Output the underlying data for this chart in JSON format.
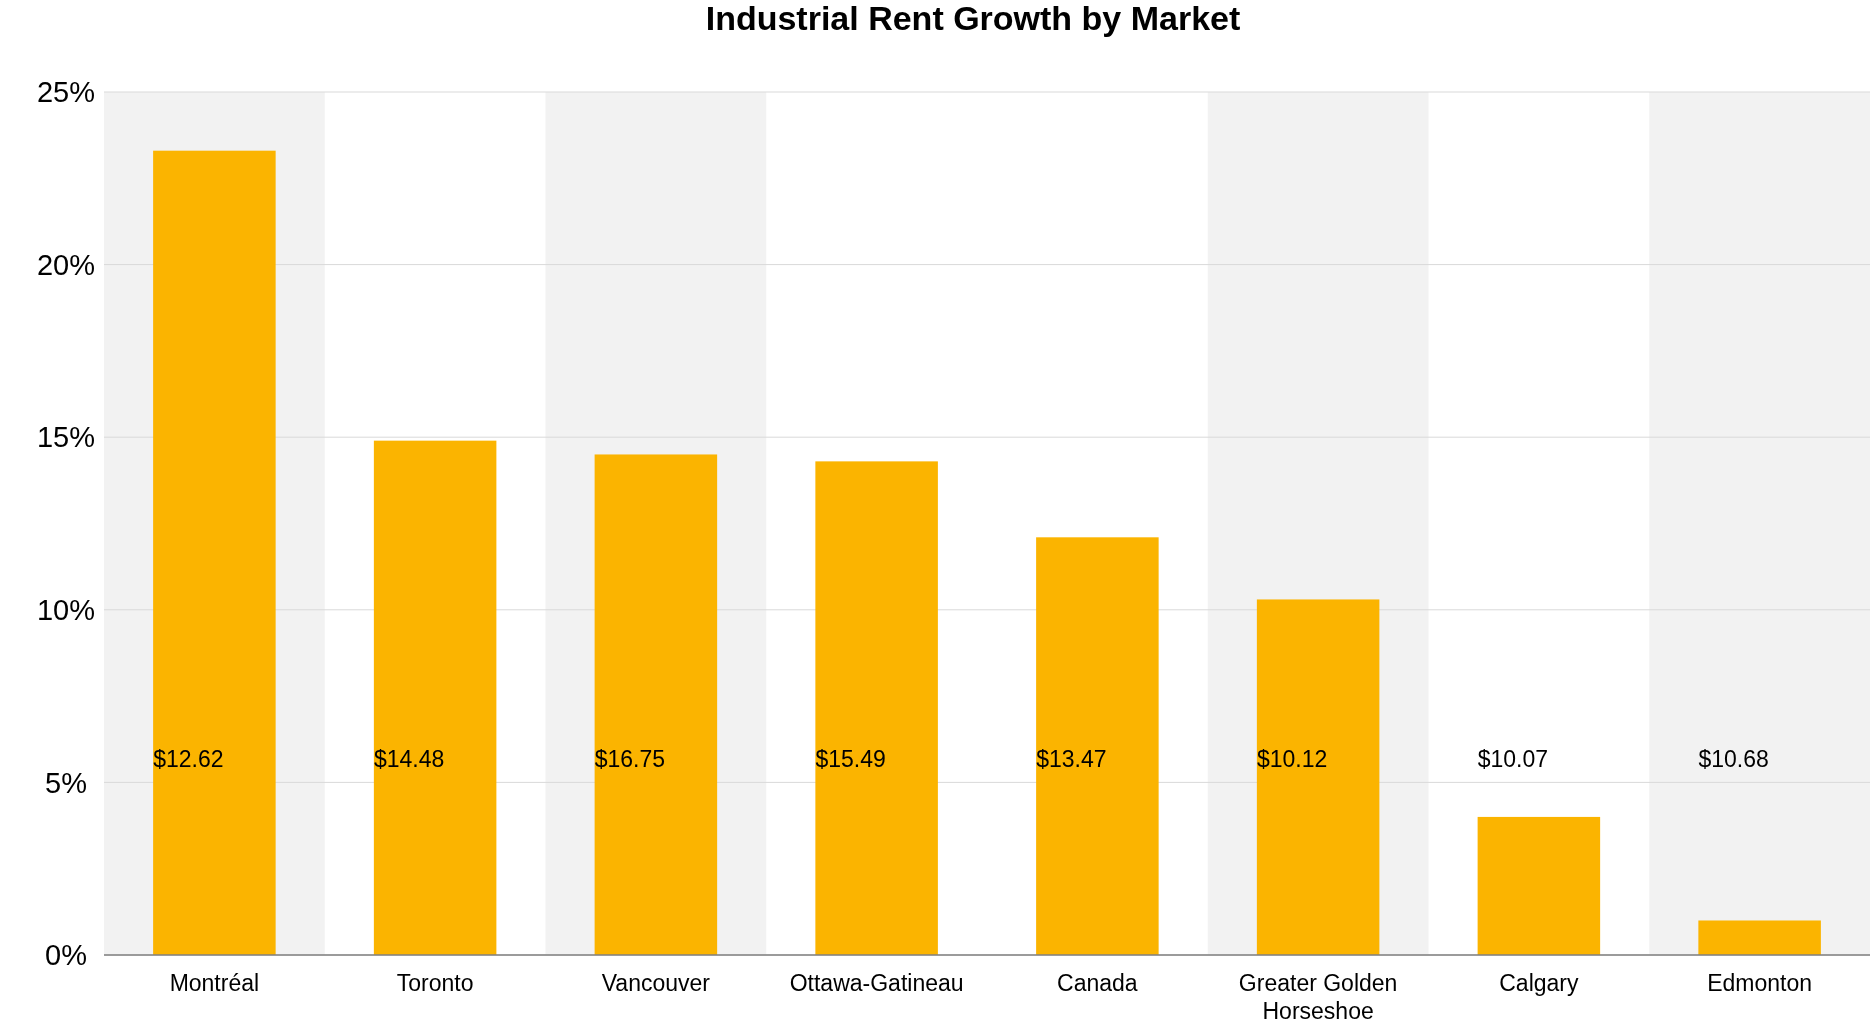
{
  "chart_data": {
    "type": "bar",
    "title": "Industrial Rent Growth by Market",
    "categories": [
      "Montréal",
      "Toronto",
      "Vancouver",
      "Ottawa-Gatineau",
      "Canada",
      "Greater Golden Horseshoe",
      "Calgary",
      "Edmonton"
    ],
    "values": [
      23.3,
      14.9,
      14.5,
      14.3,
      12.1,
      10.3,
      4.0,
      1.0
    ],
    "annotations": [
      "$12.62",
      "$14.48",
      "$16.75",
      "$15.49",
      "$13.47",
      "$10.12",
      "$10.07",
      "$10.68"
    ],
    "color": "#fbb400",
    "ylim": [
      0,
      25
    ],
    "yticks": [
      {
        "value": 0,
        "label": "0%"
      },
      {
        "value": 5,
        "label": "5%"
      },
      {
        "value": 10,
        "label": "10%"
      },
      {
        "value": 15,
        "label": "15%"
      },
      {
        "value": 20,
        "label": "20%"
      },
      {
        "value": 25,
        "label": "25%"
      }
    ],
    "grid": "y",
    "bands": [
      {
        "axis": "x",
        "from": "Montréal",
        "to": "Montréal",
        "color": "#f2f2f2"
      },
      {
        "axis": "x",
        "from": "Vancouver",
        "to": "Vancouver",
        "color": "#f2f2f2"
      },
      {
        "axis": "x",
        "from": "Greater Golden Horseshoe",
        "to": "Greater Golden Horseshoe",
        "color": "#f2f2f2"
      },
      {
        "axis": "x",
        "from": "Edmonton",
        "to": "Edmonton",
        "color": "#f2f2f2"
      }
    ]
  }
}
